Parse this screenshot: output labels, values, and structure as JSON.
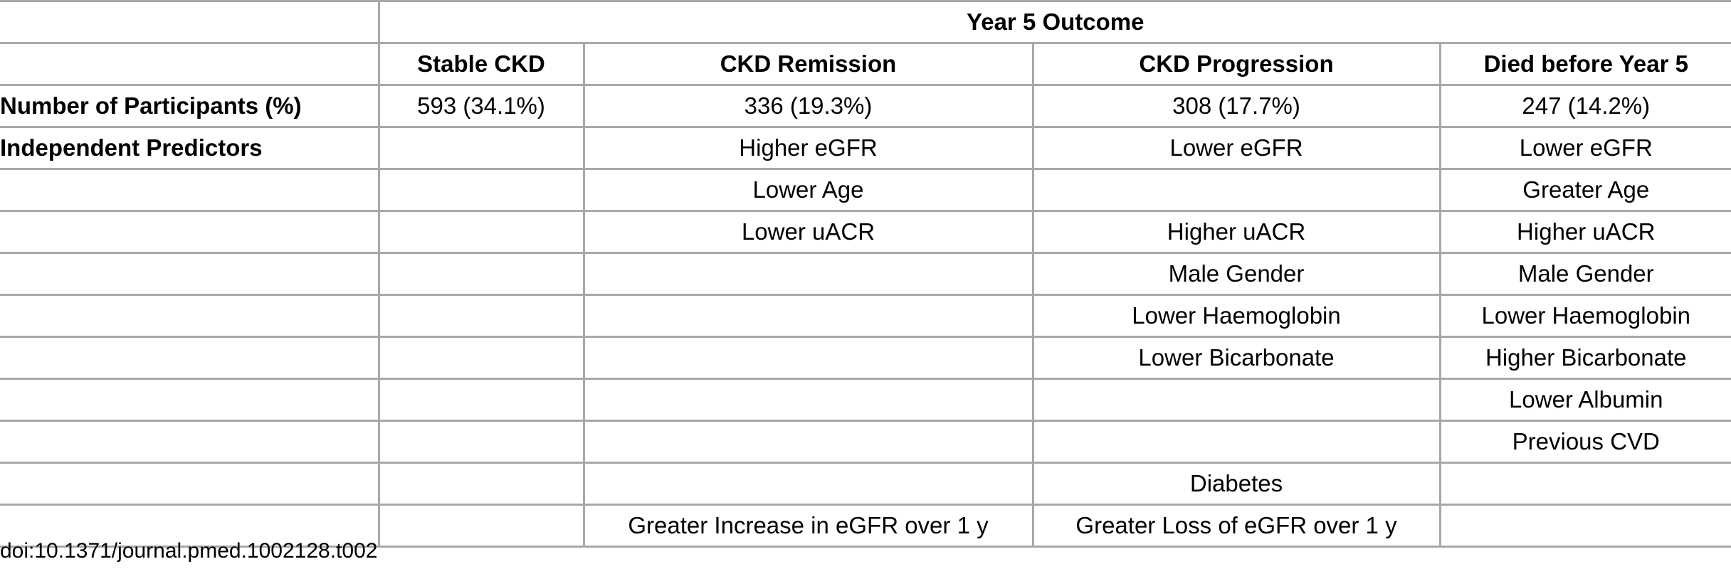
{
  "table": {
    "group_header": "Year 5 Outcome",
    "columns": [
      "Stable CKD",
      "CKD Remission",
      "CKD Progression",
      "Died before Year 5"
    ],
    "rows": [
      {
        "label": "Number of Participants (%)",
        "cells": [
          "593 (34.1%)",
          "336 (19.3%)",
          "308 (17.7%)",
          "247 (14.2%)"
        ]
      },
      {
        "label": "Independent Predictors",
        "cells": [
          "",
          "Higher eGFR",
          "Lower eGFR",
          "Lower eGFR"
        ]
      },
      {
        "label": "",
        "cells": [
          "",
          "Lower Age",
          "",
          "Greater Age"
        ]
      },
      {
        "label": "",
        "cells": [
          "",
          "Lower uACR",
          "Higher uACR",
          "Higher uACR"
        ]
      },
      {
        "label": "",
        "cells": [
          "",
          "",
          "Male Gender",
          "Male Gender"
        ]
      },
      {
        "label": "",
        "cells": [
          "",
          "",
          "Lower Haemoglobin",
          "Lower Haemoglobin"
        ]
      },
      {
        "label": "",
        "cells": [
          "",
          "",
          "Lower Bicarbonate",
          "Higher Bicarbonate"
        ]
      },
      {
        "label": "",
        "cells": [
          "",
          "",
          "",
          "Lower Albumin"
        ]
      },
      {
        "label": "",
        "cells": [
          "",
          "",
          "",
          "Previous CVD"
        ]
      },
      {
        "label": "",
        "cells": [
          "",
          "",
          "Diabetes",
          ""
        ]
      },
      {
        "label": "",
        "cells": [
          "",
          "Greater Increase in eGFR over 1 y",
          "Greater Loss of eGFR over 1 y",
          ""
        ]
      }
    ]
  },
  "doi": "doi:10.1371/journal.pmed.1002128.t002"
}
